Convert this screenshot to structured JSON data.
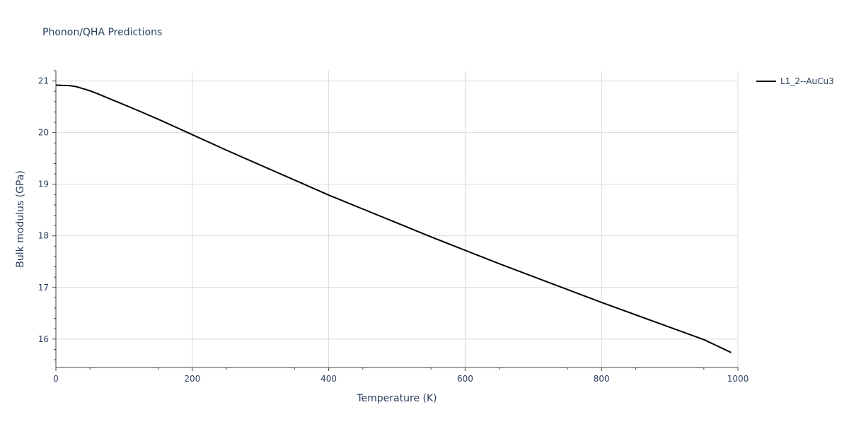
{
  "chart_data": {
    "type": "line",
    "title": "Phonon/QHA Predictions",
    "xlabel": "Temperature (K)",
    "ylabel": "Bulk modulus (GPa)",
    "xlim": [
      0,
      1000
    ],
    "ylim": [
      15.45,
      21.2
    ],
    "x_ticks": [
      0,
      200,
      400,
      600,
      800,
      1000
    ],
    "x_tick_labels": [
      "0",
      "200",
      "400",
      "600",
      "800",
      "1000"
    ],
    "y_ticks": [
      16,
      17,
      18,
      19,
      20,
      21
    ],
    "y_tick_labels": [
      "16",
      "17",
      "18",
      "19",
      "20",
      "21"
    ],
    "grid": true,
    "legend_position": "top-right",
    "series": [
      {
        "name": "L1_2--AuCu3",
        "color": "#000000",
        "x": [
          0,
          10,
          20,
          30,
          40,
          50,
          60,
          80,
          100,
          120,
          150,
          200,
          250,
          300,
          350,
          400,
          450,
          500,
          550,
          600,
          650,
          700,
          750,
          800,
          850,
          900,
          950,
          990
        ],
        "y": [
          20.92,
          20.915,
          20.91,
          20.89,
          20.85,
          20.81,
          20.76,
          20.65,
          20.54,
          20.43,
          20.26,
          19.96,
          19.66,
          19.37,
          19.08,
          18.79,
          18.52,
          18.25,
          17.98,
          17.72,
          17.46,
          17.21,
          16.96,
          16.71,
          16.47,
          16.23,
          15.99,
          15.74
        ]
      }
    ]
  }
}
